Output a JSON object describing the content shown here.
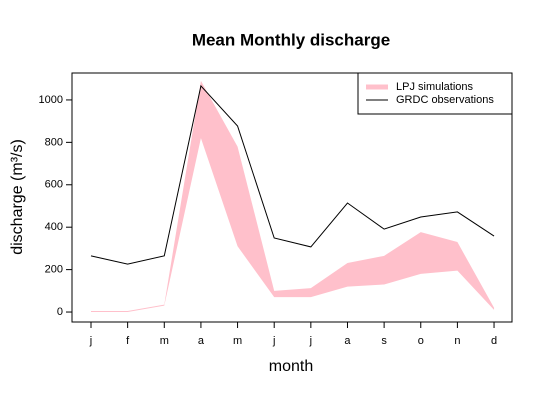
{
  "chart_data": {
    "type": "line",
    "title": "Mean Monthly discharge",
    "x_label": "month",
    "y_label": "discharge (m³/s)",
    "categories": [
      "j",
      "f",
      "m",
      "a",
      "m",
      "j",
      "j",
      "a",
      "s",
      "o",
      "n",
      "d"
    ],
    "series": [
      {
        "name": "LPJ simulations",
        "color": "#ffc0cb",
        "upper": [
          5,
          5,
          35,
          1090,
          780,
          100,
          113,
          231,
          265,
          377,
          330,
          20
        ],
        "lower": [
          0,
          0,
          30,
          820,
          310,
          70,
          70,
          120,
          130,
          180,
          195,
          10
        ]
      },
      {
        "name": "GRDC observations",
        "color": "#000000",
        "values": [
          265,
          226,
          265,
          1066,
          877,
          349,
          307,
          514,
          391,
          448,
          472,
          358
        ]
      }
    ],
    "ylim": [
      -47,
      1127
    ],
    "yticks": [
      0,
      200,
      400,
      600,
      800,
      1000
    ],
    "legend": "top-right"
  }
}
